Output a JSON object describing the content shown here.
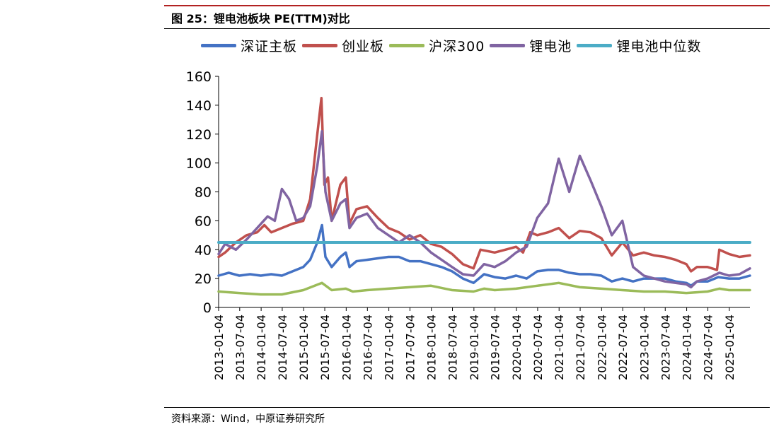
{
  "figure": {
    "title": "图 25：锂电池板块 PE(TTM)对比",
    "source": "资料来源：Wind，中原证券研究所"
  },
  "chart_data": {
    "type": "line",
    "title": "",
    "xlabel": "",
    "ylabel": "",
    "ylim": [
      0,
      160
    ],
    "yticks": [
      0,
      20,
      40,
      60,
      80,
      100,
      120,
      140,
      160
    ],
    "xlim": [
      "2013-01-04",
      "2025-06-30"
    ],
    "xticks": [
      "2013-01-04",
      "2013-07-04",
      "2014-01-04",
      "2014-07-04",
      "2015-01-04",
      "2015-07-04",
      "2016-01-04",
      "2016-07-04",
      "2017-01-04",
      "2017-07-04",
      "2018-01-04",
      "2018-07-04",
      "2019-01-04",
      "2019-07-04",
      "2020-01-04",
      "2020-07-04",
      "2021-01-04",
      "2021-07-04",
      "2022-01-04",
      "2022-07-04",
      "2023-01-04",
      "2023-07-04",
      "2024-01-04",
      "2024-07-04",
      "2025-01-04"
    ],
    "grid": false,
    "legend_position": "top",
    "series": [
      {
        "name": "深证主板",
        "color": "#4472c4",
        "points": [
          [
            "2013-01-04",
            22
          ],
          [
            "2013-04-01",
            24
          ],
          [
            "2013-07-01",
            22
          ],
          [
            "2013-10-01",
            23
          ],
          [
            "2014-01-01",
            22
          ],
          [
            "2014-04-01",
            23
          ],
          [
            "2014-07-01",
            22
          ],
          [
            "2014-10-01",
            25
          ],
          [
            "2015-01-01",
            28
          ],
          [
            "2015-03-01",
            33
          ],
          [
            "2015-05-01",
            45
          ],
          [
            "2015-06-10",
            57
          ],
          [
            "2015-07-10",
            35
          ],
          [
            "2015-09-01",
            28
          ],
          [
            "2015-11-15",
            35
          ],
          [
            "2016-01-01",
            38
          ],
          [
            "2016-02-01",
            28
          ],
          [
            "2016-04-01",
            32
          ],
          [
            "2016-07-01",
            33
          ],
          [
            "2016-10-01",
            34
          ],
          [
            "2017-01-01",
            35
          ],
          [
            "2017-04-01",
            35
          ],
          [
            "2017-07-01",
            32
          ],
          [
            "2017-10-01",
            32
          ],
          [
            "2018-01-01",
            30
          ],
          [
            "2018-04-01",
            28
          ],
          [
            "2018-07-01",
            25
          ],
          [
            "2018-10-01",
            20
          ],
          [
            "2019-01-01",
            17
          ],
          [
            "2019-04-01",
            23
          ],
          [
            "2019-07-01",
            21
          ],
          [
            "2019-10-01",
            20
          ],
          [
            "2020-01-01",
            22
          ],
          [
            "2020-04-01",
            20
          ],
          [
            "2020-07-01",
            25
          ],
          [
            "2020-10-01",
            26
          ],
          [
            "2021-01-01",
            26
          ],
          [
            "2021-04-01",
            24
          ],
          [
            "2021-07-01",
            23
          ],
          [
            "2021-10-01",
            23
          ],
          [
            "2022-01-01",
            22
          ],
          [
            "2022-04-01",
            18
          ],
          [
            "2022-07-01",
            20
          ],
          [
            "2022-10-01",
            18
          ],
          [
            "2023-01-01",
            20
          ],
          [
            "2023-04-01",
            20
          ],
          [
            "2023-07-01",
            20
          ],
          [
            "2023-10-01",
            18
          ],
          [
            "2024-01-01",
            17
          ],
          [
            "2024-02-10",
            15
          ],
          [
            "2024-04-01",
            18
          ],
          [
            "2024-07-01",
            18
          ],
          [
            "2024-10-01",
            21
          ],
          [
            "2025-01-01",
            20
          ],
          [
            "2025-04-01",
            20
          ],
          [
            "2025-06-30",
            22
          ]
        ]
      },
      {
        "name": "创业板",
        "color": "#c0504d",
        "points": [
          [
            "2013-01-04",
            35
          ],
          [
            "2013-03-01",
            38
          ],
          [
            "2013-06-01",
            45
          ],
          [
            "2013-09-01",
            50
          ],
          [
            "2013-12-01",
            52
          ],
          [
            "2014-02-01",
            57
          ],
          [
            "2014-04-01",
            52
          ],
          [
            "2014-07-01",
            55
          ],
          [
            "2014-10-01",
            58
          ],
          [
            "2015-01-01",
            60
          ],
          [
            "2015-03-01",
            75
          ],
          [
            "2015-05-01",
            120
          ],
          [
            "2015-06-05",
            145
          ],
          [
            "2015-07-01",
            85
          ],
          [
            "2015-08-01",
            90
          ],
          [
            "2015-09-01",
            60
          ],
          [
            "2015-11-15",
            85
          ],
          [
            "2016-01-01",
            90
          ],
          [
            "2016-02-01",
            58
          ],
          [
            "2016-04-01",
            68
          ],
          [
            "2016-07-01",
            70
          ],
          [
            "2016-10-01",
            62
          ],
          [
            "2017-01-01",
            55
          ],
          [
            "2017-04-01",
            52
          ],
          [
            "2017-07-01",
            47
          ],
          [
            "2017-10-01",
            50
          ],
          [
            "2018-01-01",
            44
          ],
          [
            "2018-04-01",
            42
          ],
          [
            "2018-07-01",
            37
          ],
          [
            "2018-10-01",
            30
          ],
          [
            "2019-01-01",
            27
          ],
          [
            "2019-03-01",
            40
          ],
          [
            "2019-07-01",
            38
          ],
          [
            "2019-10-01",
            40
          ],
          [
            "2020-01-01",
            42
          ],
          [
            "2020-03-01",
            38
          ],
          [
            "2020-05-01",
            52
          ],
          [
            "2020-07-01",
            50
          ],
          [
            "2020-10-01",
            52
          ],
          [
            "2021-01-01",
            55
          ],
          [
            "2021-04-01",
            48
          ],
          [
            "2021-07-01",
            53
          ],
          [
            "2021-10-01",
            52
          ],
          [
            "2022-01-01",
            48
          ],
          [
            "2022-04-01",
            36
          ],
          [
            "2022-07-01",
            45
          ],
          [
            "2022-10-01",
            36
          ],
          [
            "2023-01-01",
            38
          ],
          [
            "2023-04-01",
            36
          ],
          [
            "2023-07-01",
            35
          ],
          [
            "2023-10-01",
            33
          ],
          [
            "2024-01-01",
            30
          ],
          [
            "2024-02-10",
            25
          ],
          [
            "2024-04-01",
            28
          ],
          [
            "2024-07-01",
            28
          ],
          [
            "2024-09-20",
            26
          ],
          [
            "2024-10-10",
            40
          ],
          [
            "2025-01-01",
            37
          ],
          [
            "2025-04-01",
            35
          ],
          [
            "2025-06-30",
            36
          ]
        ]
      },
      {
        "name": "沪深300",
        "color": "#9bbb59",
        "points": [
          [
            "2013-01-04",
            11
          ],
          [
            "2013-07-01",
            10
          ],
          [
            "2014-01-01",
            9
          ],
          [
            "2014-07-01",
            9
          ],
          [
            "2015-01-01",
            12
          ],
          [
            "2015-06-10",
            17
          ],
          [
            "2015-09-01",
            12
          ],
          [
            "2016-01-01",
            13
          ],
          [
            "2016-03-01",
            11
          ],
          [
            "2016-07-01",
            12
          ],
          [
            "2017-01-01",
            13
          ],
          [
            "2017-07-01",
            14
          ],
          [
            "2018-01-01",
            15
          ],
          [
            "2018-07-01",
            12
          ],
          [
            "2019-01-01",
            11
          ],
          [
            "2019-04-01",
            13
          ],
          [
            "2019-07-01",
            12
          ],
          [
            "2020-01-01",
            13
          ],
          [
            "2020-07-01",
            15
          ],
          [
            "2021-01-01",
            17
          ],
          [
            "2021-07-01",
            14
          ],
          [
            "2022-01-01",
            13
          ],
          [
            "2022-07-01",
            12
          ],
          [
            "2023-01-01",
            11
          ],
          [
            "2023-07-01",
            11
          ],
          [
            "2024-01-01",
            10
          ],
          [
            "2024-07-01",
            11
          ],
          [
            "2024-10-10",
            13
          ],
          [
            "2025-01-01",
            12
          ],
          [
            "2025-06-30",
            12
          ]
        ]
      },
      {
        "name": "锂电池",
        "color": "#8064a2",
        "points": [
          [
            "2013-01-04",
            37
          ],
          [
            "2013-03-01",
            44
          ],
          [
            "2013-06-01",
            40
          ],
          [
            "2013-09-01",
            47
          ],
          [
            "2013-12-01",
            55
          ],
          [
            "2014-03-01",
            63
          ],
          [
            "2014-05-01",
            60
          ],
          [
            "2014-07-01",
            82
          ],
          [
            "2014-09-01",
            75
          ],
          [
            "2014-11-01",
            60
          ],
          [
            "2015-01-01",
            62
          ],
          [
            "2015-03-01",
            70
          ],
          [
            "2015-05-01",
            98
          ],
          [
            "2015-06-10",
            122
          ],
          [
            "2015-07-10",
            80
          ],
          [
            "2015-09-01",
            60
          ],
          [
            "2015-11-15",
            72
          ],
          [
            "2016-01-01",
            75
          ],
          [
            "2016-02-01",
            55
          ],
          [
            "2016-04-01",
            62
          ],
          [
            "2016-07-01",
            65
          ],
          [
            "2016-10-01",
            55
          ],
          [
            "2017-01-01",
            50
          ],
          [
            "2017-04-01",
            45
          ],
          [
            "2017-07-01",
            50
          ],
          [
            "2017-10-01",
            45
          ],
          [
            "2018-01-01",
            38
          ],
          [
            "2018-04-01",
            33
          ],
          [
            "2018-07-01",
            28
          ],
          [
            "2018-10-01",
            23
          ],
          [
            "2019-01-01",
            22
          ],
          [
            "2019-04-01",
            30
          ],
          [
            "2019-07-01",
            28
          ],
          [
            "2019-10-01",
            32
          ],
          [
            "2020-01-01",
            38
          ],
          [
            "2020-04-01",
            42
          ],
          [
            "2020-07-01",
            62
          ],
          [
            "2020-10-01",
            72
          ],
          [
            "2021-01-01",
            103
          ],
          [
            "2021-04-01",
            80
          ],
          [
            "2021-07-01",
            105
          ],
          [
            "2021-10-01",
            88
          ],
          [
            "2022-01-01",
            70
          ],
          [
            "2022-04-01",
            50
          ],
          [
            "2022-07-01",
            60
          ],
          [
            "2022-10-01",
            28
          ],
          [
            "2023-01-01",
            22
          ],
          [
            "2023-04-01",
            20
          ],
          [
            "2023-07-01",
            18
          ],
          [
            "2023-10-01",
            17
          ],
          [
            "2024-01-01",
            16
          ],
          [
            "2024-02-10",
            14
          ],
          [
            "2024-04-01",
            18
          ],
          [
            "2024-07-01",
            20
          ],
          [
            "2024-10-10",
            24
          ],
          [
            "2025-01-01",
            22
          ],
          [
            "2025-04-01",
            23
          ],
          [
            "2025-06-30",
            27
          ]
        ]
      },
      {
        "name": "锂电池中位数",
        "color": "#4bacc6",
        "points": [
          [
            "2013-01-04",
            45
          ],
          [
            "2025-06-30",
            45
          ]
        ]
      }
    ]
  }
}
